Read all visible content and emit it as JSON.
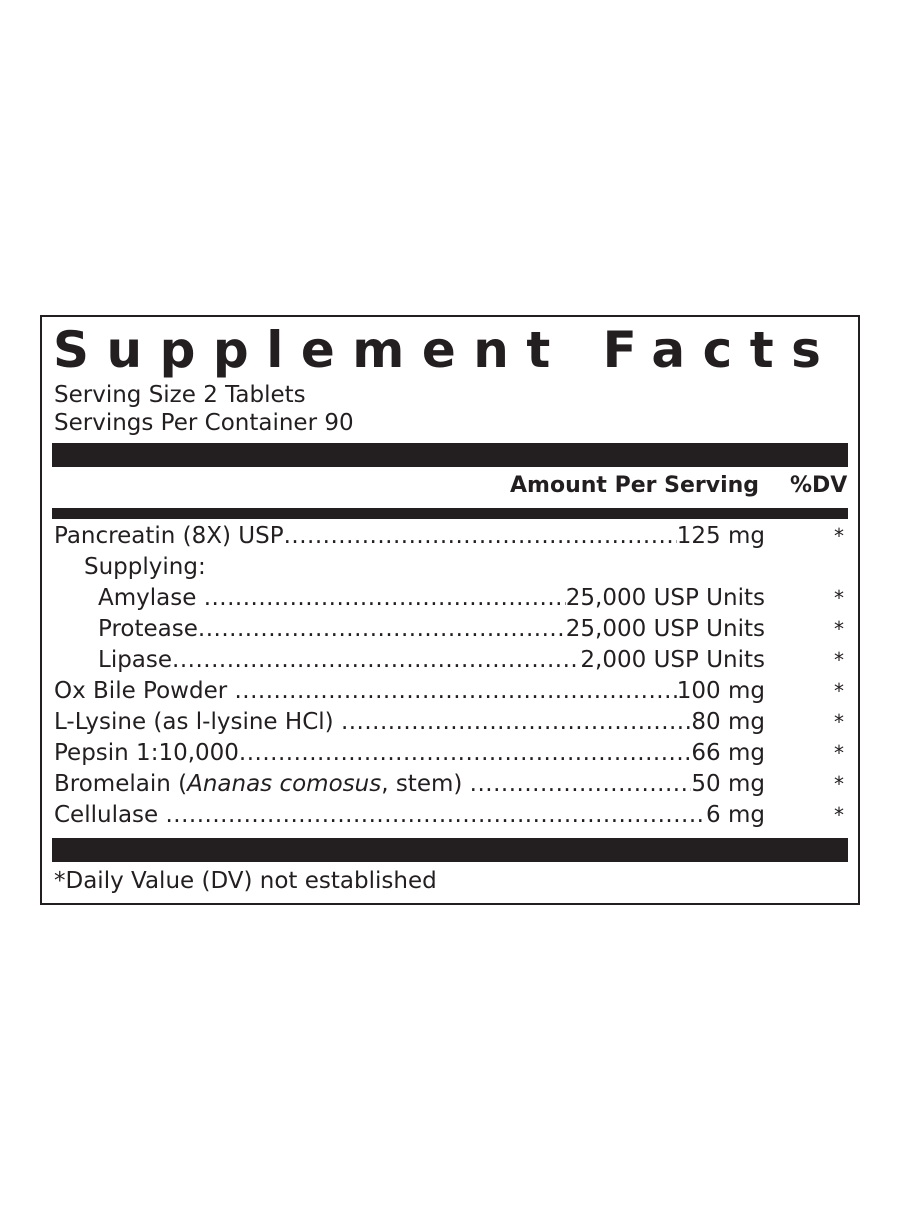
{
  "title": "Supplement Facts",
  "serving_size": "Serving Size 2 Tablets",
  "servings_per_container": "Servings Per Container 90",
  "header": {
    "amount": "Amount Per Serving",
    "dv": "%DV"
  },
  "rows": [
    {
      "name": "Pancreatin (8X) USP",
      "amount": "125 mg",
      "dv": "*",
      "indent": 0
    },
    {
      "name": "Supplying:",
      "amount": "",
      "dv": "",
      "indent": 1
    },
    {
      "name": "Amylase ",
      "amount": "25,000 USP Units",
      "dv": "*",
      "indent": 2
    },
    {
      "name": "Protease",
      "amount": "25,000 USP Units",
      "dv": "*",
      "indent": 2
    },
    {
      "name": "Lipase",
      "amount": "2,000 USP Units",
      "dv": "*",
      "indent": 2
    },
    {
      "name": "Ox Bile Powder ",
      "amount": "100 mg",
      "dv": "*",
      "indent": 0
    },
    {
      "name": "L-Lysine (as l-lysine HCl) ",
      "amount": "80 mg",
      "dv": "*",
      "indent": 0
    },
    {
      "name": "Pepsin 1:10,000",
      "amount": "66 mg",
      "dv": "*",
      "indent": 0
    },
    {
      "name": "Bromelain (",
      "name_italic": "Ananas comosus",
      "name_after": ", stem) ",
      "amount": "50 mg",
      "dv": "*",
      "indent": 0
    },
    {
      "name": "Cellulase ",
      "amount": "6 mg",
      "dv": "*",
      "indent": 0
    }
  ],
  "footnote": "*Daily Value (DV) not established"
}
